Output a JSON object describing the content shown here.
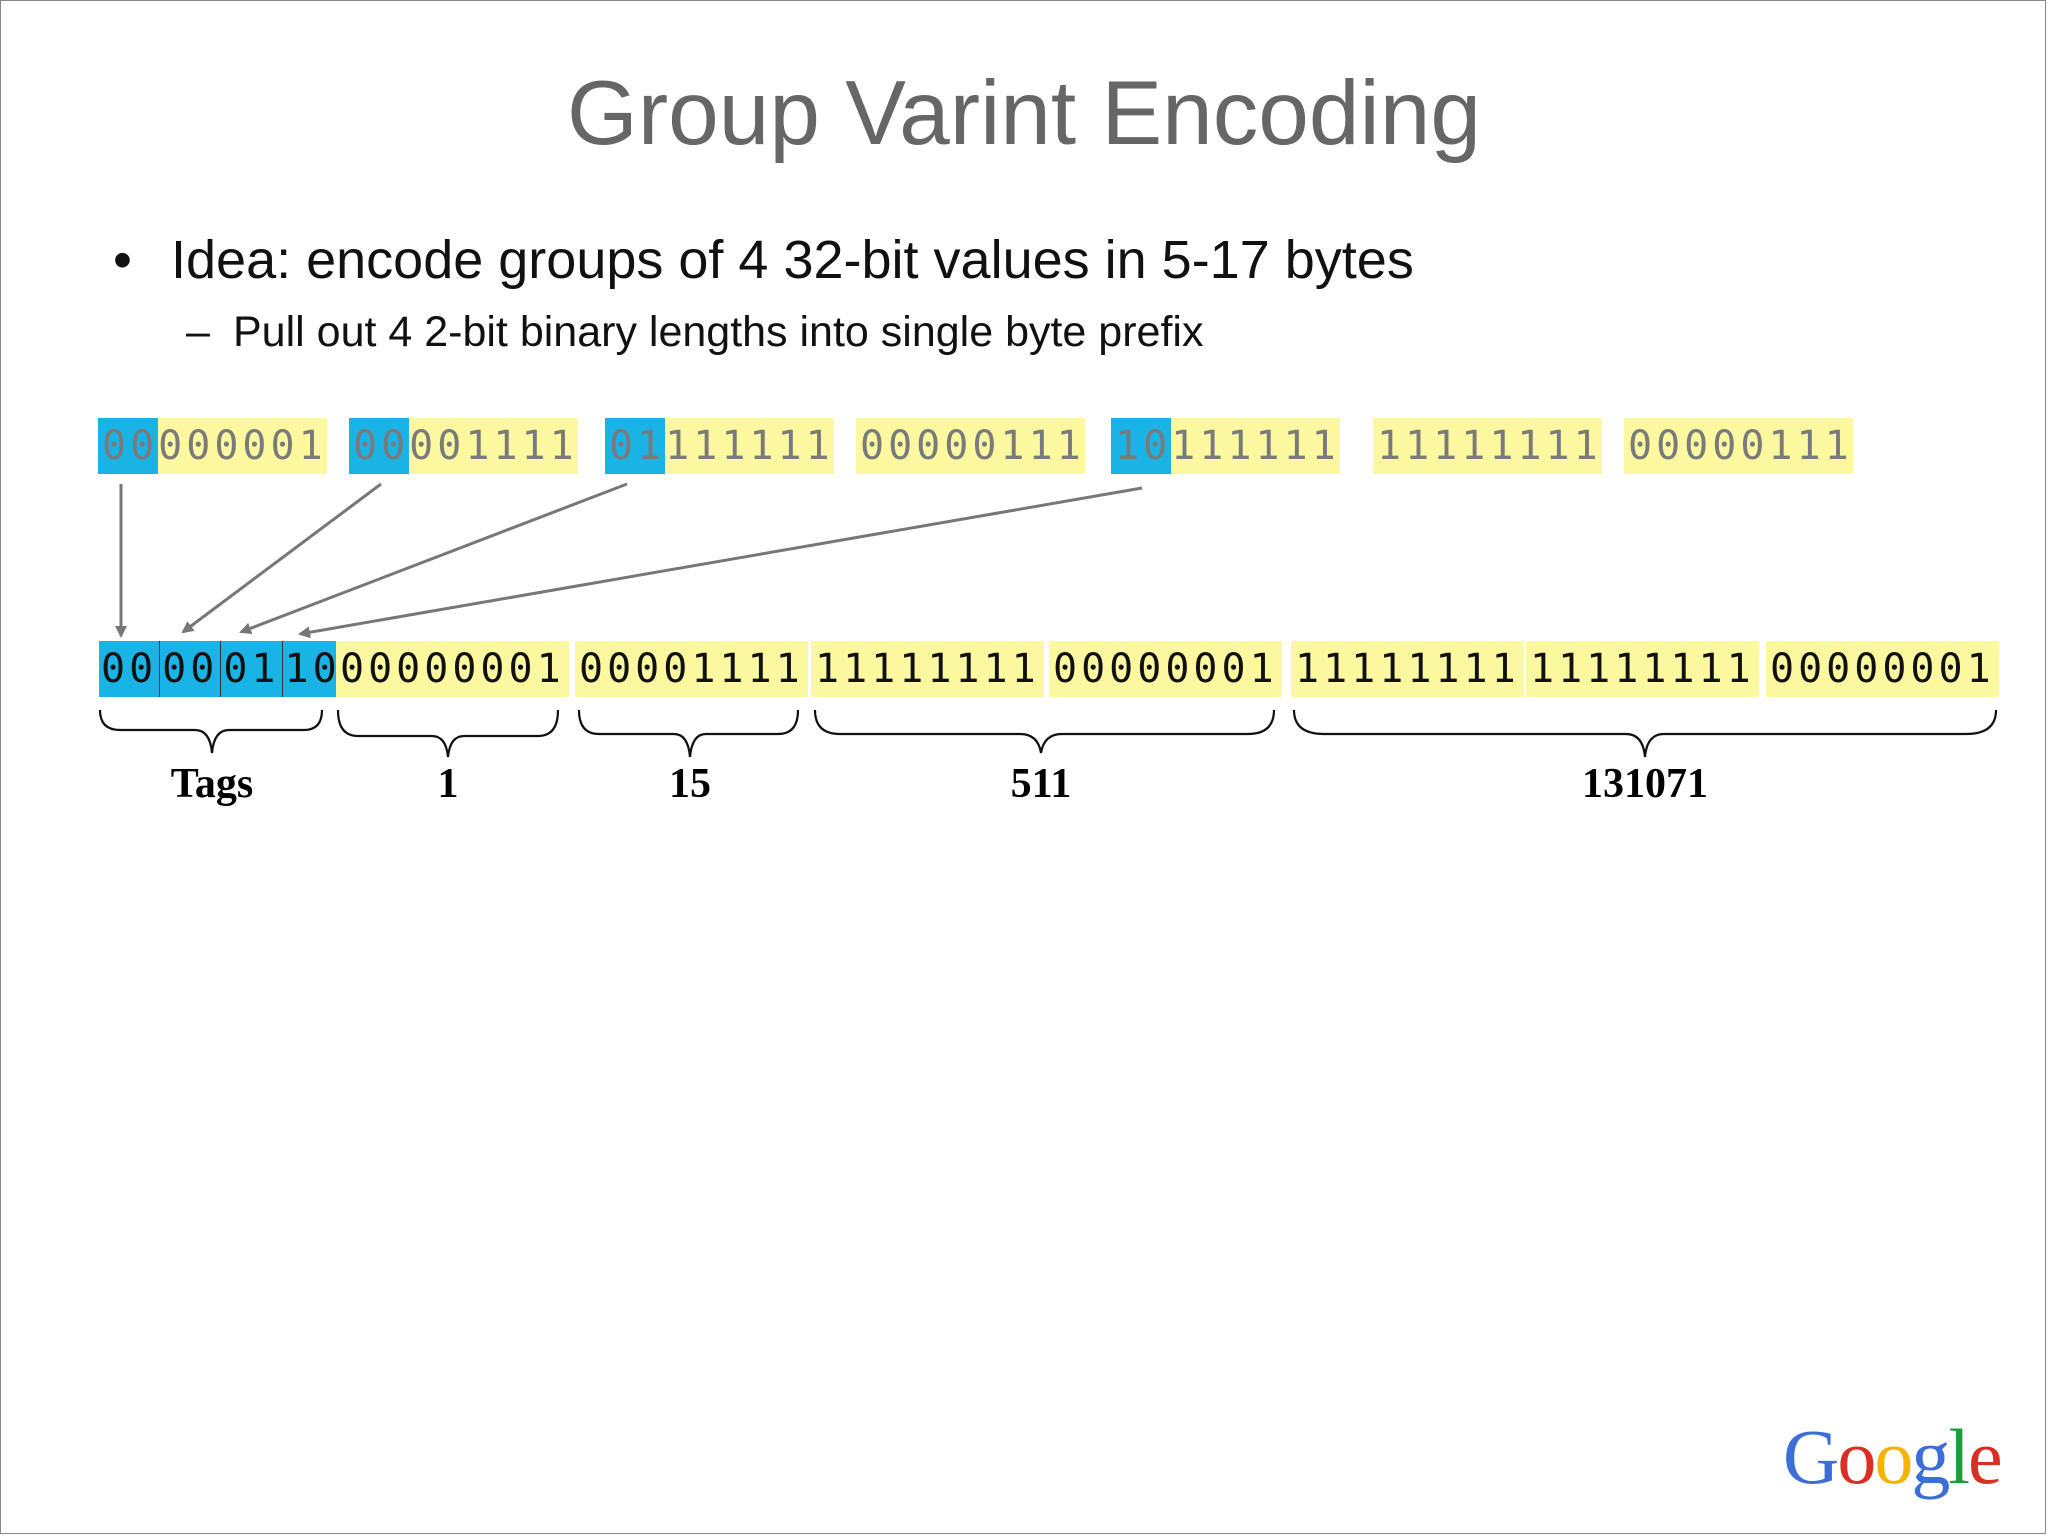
{
  "slide": {
    "title": "Group Varint Encoding",
    "bullet": "Idea: encode groups of 4 32-bit values in 5-17 bytes",
    "sub_bullet": "Pull out 4 2-bit binary lengths into single byte prefix"
  },
  "input_bytes": [
    {
      "tag": "00",
      "rest": "000001"
    },
    {
      "tag": "00",
      "rest": "001111"
    },
    {
      "tag": "01",
      "rest": "111111"
    },
    {
      "tag": "",
      "rest": "00000111"
    },
    {
      "tag": "10",
      "rest": "111111"
    },
    {
      "tag": "",
      "rest": "11111111"
    },
    {
      "tag": "",
      "rest": "00000111"
    }
  ],
  "tag_byte_bits": [
    "00",
    "00",
    "01",
    "10"
  ],
  "output_bytes": [
    "00000001",
    "00001111",
    "11111111",
    "00000001",
    "11111111",
    "11111111",
    "00000001"
  ],
  "group_labels": {
    "tags": "Tags",
    "v1": "1",
    "v2": "15",
    "v3": "511",
    "v4": "131071"
  },
  "logo": {
    "letters": [
      {
        "ch": "G",
        "color": "#3b6ed8"
      },
      {
        "ch": "o",
        "color": "#d93025"
      },
      {
        "ch": "o",
        "color": "#f4b400"
      },
      {
        "ch": "g",
        "color": "#3b6ed8"
      },
      {
        "ch": "l",
        "color": "#1e9e3b"
      },
      {
        "ch": "e",
        "color": "#d93025"
      }
    ]
  },
  "colors": {
    "tag_bits": "#1ab3e6",
    "payload_bytes": "#fcf8a0",
    "arrows": "#777777"
  }
}
